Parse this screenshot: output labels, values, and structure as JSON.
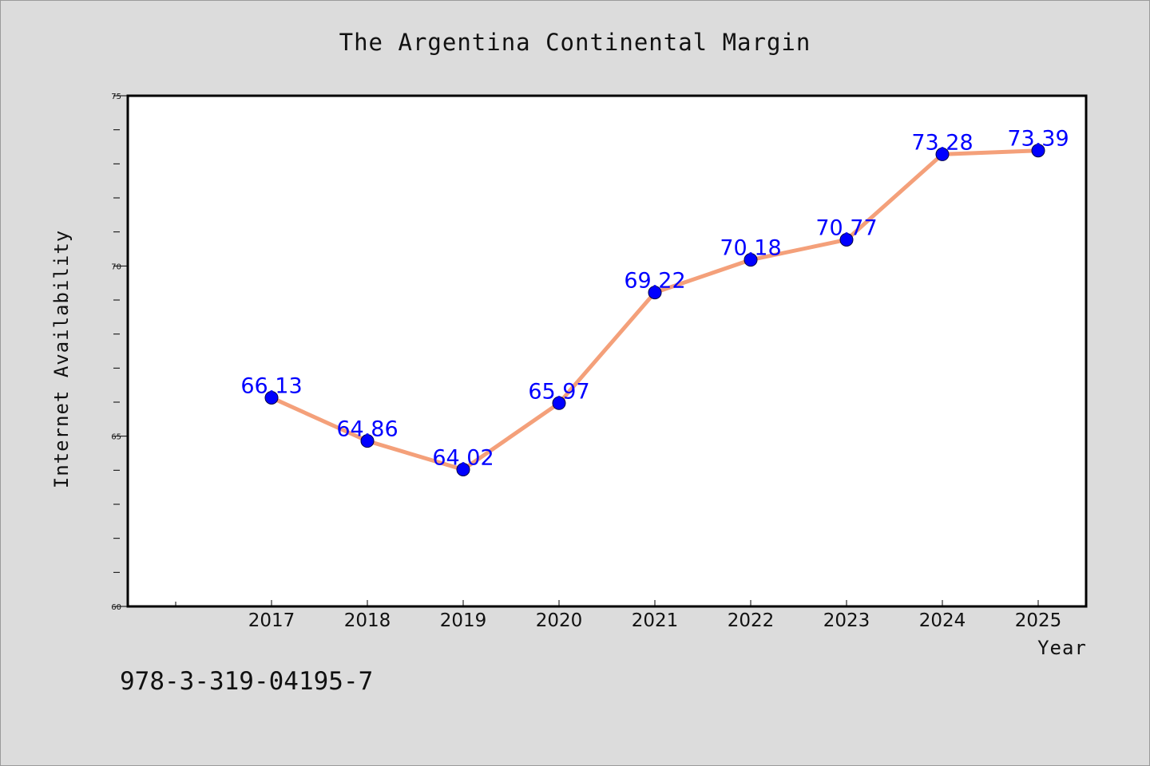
{
  "chart_data": {
    "type": "line",
    "title": "The Argentina Continental Margin",
    "xlabel": "Year",
    "ylabel": "Internet Availability",
    "categories": [
      "2017",
      "2018",
      "2019",
      "2020",
      "2021",
      "2022",
      "2023",
      "2024",
      "2025"
    ],
    "series": [
      {
        "values": [
          66.13,
          64.86,
          64.02,
          65.97,
          69.22,
          70.18,
          70.77,
          73.28,
          73.39
        ],
        "labels": [
          "66.13",
          "64.86",
          "64.02",
          "65.97",
          "69.22",
          "70.18",
          "70.77",
          "73.28",
          "73.39"
        ]
      }
    ],
    "ylim": [
      60,
      75
    ],
    "y_ticks": [
      "60",
      "65",
      "70",
      "75"
    ],
    "grid": false,
    "legend": "none",
    "colors": {
      "line": "#f4a07a",
      "marker": "#0000ff",
      "data_label": "#0000ff",
      "background": "#dcdcdc",
      "plot_area": "#ffffff"
    }
  },
  "footer": {
    "text": "978-3-319-04195-7"
  }
}
